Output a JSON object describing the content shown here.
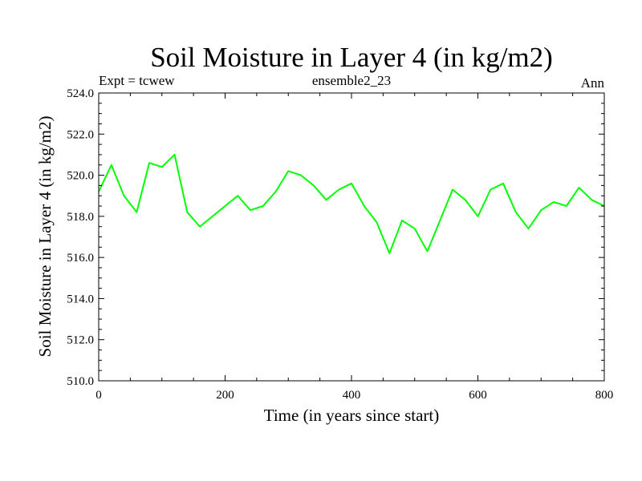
{
  "chart_data": {
    "type": "line",
    "title": "Soil Moisture in Layer 4 (in kg/m2)",
    "subtitle_left": "Expt = tcwew",
    "subtitle_center": "ensemble2_23",
    "subtitle_right": "Ann",
    "xlabel": "Time (in years since start)",
    "ylabel": "Soil Moisture in Layer 4 (in kg/m2)",
    "xlim": [
      0,
      800
    ],
    "ylim": [
      510,
      524
    ],
    "xticks": [
      0,
      200,
      400,
      600,
      800
    ],
    "xtick_labels": [
      "0",
      "200",
      "400",
      "600",
      "800"
    ],
    "yticks": [
      510,
      512,
      514,
      516,
      518,
      520,
      522,
      524
    ],
    "ytick_labels": [
      "510.0",
      "512.0",
      "514.0",
      "516.0",
      "518.0",
      "520.0",
      "522.0",
      "524.0"
    ],
    "grid": false,
    "series": [
      {
        "name": "Soil Moisture in Layer 4",
        "color": "#00ff00",
        "x": [
          0,
          20,
          40,
          60,
          80,
          100,
          120,
          140,
          160,
          180,
          200,
          220,
          240,
          260,
          280,
          300,
          320,
          340,
          360,
          380,
          400,
          420,
          440,
          460,
          480,
          500,
          520,
          540,
          560,
          580,
          600,
          620,
          640,
          660,
          680,
          700,
          720,
          740,
          760,
          780,
          800
        ],
        "values": [
          519.2,
          520.5,
          519.0,
          518.2,
          520.6,
          520.4,
          521.0,
          518.2,
          517.5,
          518.0,
          518.5,
          519.0,
          518.3,
          518.5,
          519.2,
          520.2,
          520.0,
          519.5,
          518.8,
          519.3,
          519.6,
          518.5,
          517.7,
          516.2,
          517.8,
          517.4,
          516.3,
          517.8,
          519.3,
          518.8,
          518.0,
          519.3,
          519.6,
          518.2,
          517.4,
          518.3,
          518.7,
          518.5,
          519.4,
          518.8,
          518.5
        ]
      }
    ]
  }
}
